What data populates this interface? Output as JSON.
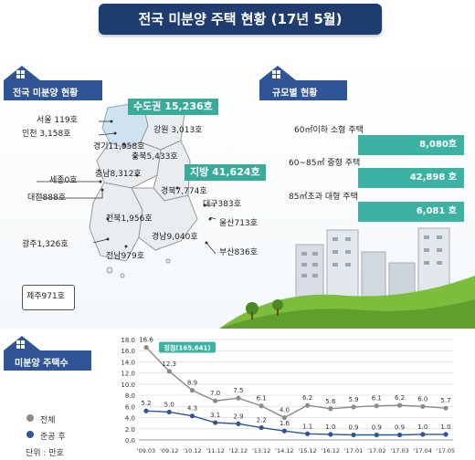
{
  "title": "전국 미분양 주택 현황 (17년 5월)",
  "sections": {
    "national": "전국 미분양 현황",
    "size": "규모별 현황",
    "unsold_count": "미분양 주택수"
  },
  "regions": {
    "capital_tag": "수도권 15,236호",
    "local_tag": "지방 41,624호",
    "seoul": "서울 119호",
    "incheon": "인천 3,158호",
    "gangwon": "강원 3,013호",
    "gyeonggi": "경기11,958호",
    "chungbuk": "충북5,433호",
    "sejong": "세종0호",
    "chungnam": "충남8,312호",
    "daejeon": "대전888호",
    "gyeongbuk": "경북7,774호",
    "daegu": "대구383호",
    "jeonbuk": "전북1,956호",
    "ulsan": "울산713호",
    "gwangju": "광주1,326호",
    "gyeongnam": "경남9,040호",
    "jeonnam": "전남979호",
    "busan": "부산836호",
    "jeju": "제주971호"
  },
  "size_stats": [
    {
      "label": "60㎡이하 소형 주택",
      "value": "8,080호"
    },
    {
      "label": "60~85㎡ 중형 주택",
      "value": "42,898 호"
    },
    {
      "label": "85㎡초과 대형 주택",
      "value": "6,081 호"
    }
  ],
  "legend": {
    "total": "전체",
    "completed": "준공 후",
    "unit": "단위 : 만호"
  },
  "peak_label": "정점(165,641)",
  "colors": {
    "navy": "#1f3c6e",
    "teal": "#3db2a3",
    "total_series": "#8a8a8a",
    "completed_series": "#2f5597"
  },
  "chart_data": {
    "type": "line",
    "categories": [
      "'09.03",
      "'09.12",
      "'10.12",
      "'11.12",
      "'12.12",
      "'13.12",
      "'14.12",
      "'15.12",
      "'16.12",
      "'17.01",
      "'17.02",
      "'17.03",
      "'17.04",
      "'17.05"
    ],
    "series": [
      {
        "name": "전체",
        "values": [
          16.6,
          12.3,
          8.9,
          7.0,
          7.5,
          6.1,
          4.0,
          6.2,
          5.6,
          5.9,
          6.1,
          6.2,
          6.0,
          5.7
        ],
        "labels": [
          "16.6",
          "12.3",
          "8.9",
          "7.0",
          "7.5",
          "6.1",
          "4.0",
          "6.2",
          "5.6",
          "5.9",
          "6.1",
          "6.2",
          "6.0",
          "5.7"
        ]
      },
      {
        "name": "준공 후",
        "values": [
          5.2,
          5.0,
          4.3,
          3.1,
          2.9,
          2.2,
          1.6,
          1.1,
          1.0,
          0.9,
          0.9,
          0.9,
          1.0,
          1.0
        ],
        "labels": [
          "5.2",
          "5.0",
          "4.3",
          "3.1",
          "2.9",
          "2.2",
          "1.6",
          "1.1",
          "1.0",
          "0.9",
          "0.9",
          "0.9",
          "1.0",
          "1.0"
        ]
      }
    ],
    "ylim": [
      0,
      18
    ],
    "yticks": [
      "0.0",
      "2.0",
      "4.0",
      "6.0",
      "8.0",
      "10.0",
      "12.0",
      "14.0",
      "16.0",
      "18.0"
    ],
    "grid": true
  }
}
